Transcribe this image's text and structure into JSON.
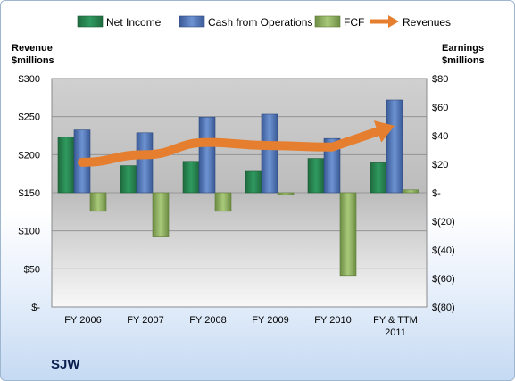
{
  "ticker": "SJW",
  "colors": {
    "net_income": "#2e8b57",
    "cash_from_operations": "#4f74b5",
    "fcf": "#8fb160",
    "revenues": "#e57f2f"
  },
  "chart_data": {
    "type": "bar",
    "categories": [
      "FY 2006",
      "FY 2007",
      "FY 2008",
      "FY 2009",
      "FY 2010",
      "FY & TTM 2011"
    ],
    "category_labels": [
      [
        "FY 2006"
      ],
      [
        "FY 2007"
      ],
      [
        "FY 2008"
      ],
      [
        "FY 2009"
      ],
      [
        "FY 2010"
      ],
      [
        "FY & TTM",
        "2011"
      ]
    ],
    "legend": [
      "Net Income",
      "Cash from Operations",
      "FCF",
      "Revenues"
    ],
    "left_axis": {
      "title_line1": "Revenue",
      "title_line2": "$millions",
      "ticks": [
        "$300",
        "$250",
        "$200",
        "$150",
        "$100",
        "$50",
        "$-"
      ],
      "range": [
        0,
        300
      ]
    },
    "right_axis": {
      "title_line1": "Earnings",
      "title_line2": "$millions",
      "ticks": [
        "$80",
        "$60",
        "$40",
        "$20",
        "$-",
        "$(20)",
        "$(40)",
        "$(60)",
        "$(80)"
      ],
      "range": [
        -80,
        80
      ]
    },
    "series": [
      {
        "name": "Net Income",
        "axis": "right",
        "values": [
          39,
          19,
          22,
          15,
          24,
          21
        ]
      },
      {
        "name": "Cash from Operations",
        "axis": "right",
        "values": [
          44,
          42,
          53,
          55,
          38,
          65
        ]
      },
      {
        "name": "FCF",
        "axis": "right",
        "values": [
          -13,
          -31,
          -13,
          -1,
          -58,
          2
        ]
      },
      {
        "name": "Revenues",
        "axis": "left",
        "type": "arrow",
        "values": [
          190,
          200,
          216,
          212,
          210,
          238
        ]
      }
    ],
    "grid": true,
    "legend_position": "top"
  }
}
